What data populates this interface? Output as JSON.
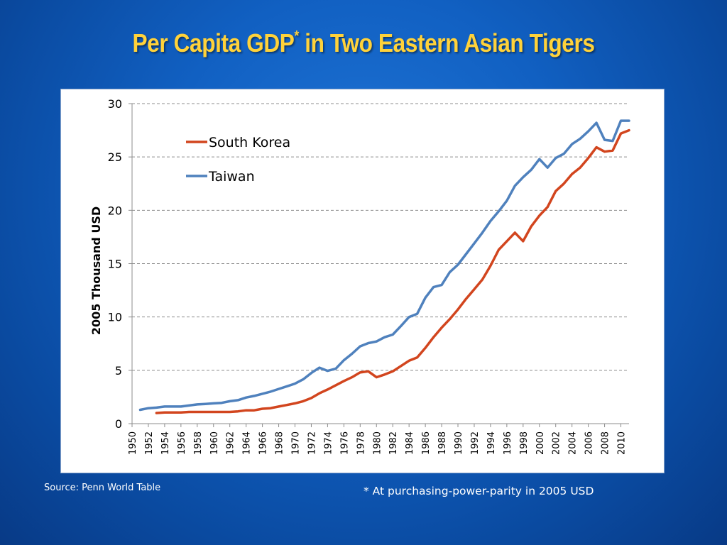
{
  "slide": {
    "title_main": "Per Capita GDP",
    "title_sup": "*",
    "title_rest": " in Two Eastern Asian Tigers",
    "source": "Source: Penn World Table",
    "footnote": "* At purchasing-power-parity in 2005 USD"
  },
  "colors": {
    "south_korea": "#d2451e",
    "taiwan": "#4f81bd",
    "title": "#ffd23a"
  },
  "chart_data": {
    "type": "line",
    "ylabel": "2005 Thousand USD",
    "xlabel": "",
    "ylim": [
      0,
      30
    ],
    "yticks": [
      0,
      5,
      10,
      15,
      20,
      25,
      30
    ],
    "xlim": [
      1950,
      2011
    ],
    "xticks": [
      1950,
      1952,
      1954,
      1956,
      1958,
      1960,
      1962,
      1964,
      1966,
      1968,
      1970,
      1972,
      1974,
      1976,
      1978,
      1980,
      1982,
      1984,
      1986,
      1988,
      1990,
      1992,
      1994,
      1996,
      1998,
      2000,
      2002,
      2004,
      2006,
      2008,
      2010
    ],
    "grid": "horizontal dashed",
    "legend": "top-left",
    "series": [
      {
        "name": "South Korea",
        "color": "#d2451e",
        "x": [
          1953,
          1954,
          1955,
          1956,
          1957,
          1958,
          1959,
          1960,
          1961,
          1962,
          1963,
          1964,
          1965,
          1966,
          1967,
          1968,
          1969,
          1970,
          1971,
          1972,
          1973,
          1974,
          1975,
          1976,
          1977,
          1978,
          1979,
          1980,
          1981,
          1982,
          1983,
          1984,
          1985,
          1986,
          1987,
          1988,
          1989,
          1990,
          1991,
          1992,
          1993,
          1994,
          1995,
          1996,
          1997,
          1998,
          1999,
          2000,
          2001,
          2002,
          2003,
          2004,
          2005,
          2006,
          2007,
          2008,
          2009,
          2010,
          2011
        ],
        "y": [
          1.0,
          1.05,
          1.05,
          1.05,
          1.1,
          1.1,
          1.1,
          1.1,
          1.1,
          1.1,
          1.15,
          1.25,
          1.25,
          1.4,
          1.45,
          1.6,
          1.75,
          1.9,
          2.1,
          2.4,
          2.85,
          3.2,
          3.6,
          4.0,
          4.35,
          4.8,
          4.9,
          4.35,
          4.6,
          4.9,
          5.4,
          5.9,
          6.2,
          7.1,
          8.1,
          9.0,
          9.8,
          10.7,
          11.7,
          12.6,
          13.5,
          14.8,
          16.3,
          17.1,
          17.9,
          17.1,
          18.5,
          19.5,
          20.3,
          21.8,
          22.5,
          23.4,
          24.0,
          24.9,
          25.9,
          25.5,
          25.6,
          27.2,
          27.5
        ]
      },
      {
        "name": "Taiwan",
        "color": "#4f81bd",
        "x": [
          1951,
          1952,
          1953,
          1954,
          1955,
          1956,
          1957,
          1958,
          1959,
          1960,
          1961,
          1962,
          1963,
          1964,
          1965,
          1966,
          1967,
          1968,
          1969,
          1970,
          1971,
          1972,
          1973,
          1974,
          1975,
          1976,
          1977,
          1978,
          1979,
          1980,
          1981,
          1982,
          1983,
          1984,
          1985,
          1986,
          1987,
          1988,
          1989,
          1990,
          1991,
          1992,
          1993,
          1994,
          1995,
          1996,
          1997,
          1998,
          1999,
          2000,
          2001,
          2002,
          2003,
          2004,
          2005,
          2006,
          2007,
          2008,
          2009,
          2010,
          2011
        ],
        "y": [
          1.3,
          1.45,
          1.5,
          1.6,
          1.6,
          1.6,
          1.7,
          1.8,
          1.85,
          1.9,
          1.95,
          2.1,
          2.2,
          2.45,
          2.6,
          2.8,
          3.0,
          3.25,
          3.5,
          3.75,
          4.15,
          4.75,
          5.25,
          4.95,
          5.15,
          5.95,
          6.55,
          7.25,
          7.55,
          7.7,
          8.1,
          8.35,
          9.15,
          10.0,
          10.3,
          11.8,
          12.8,
          13.0,
          14.2,
          14.9,
          15.9,
          16.9,
          17.9,
          19.0,
          19.9,
          20.9,
          22.3,
          23.1,
          23.8,
          24.8,
          24.0,
          24.9,
          25.3,
          26.2,
          26.7,
          27.4,
          28.2,
          26.6,
          26.5,
          28.4,
          28.4
        ]
      }
    ]
  }
}
